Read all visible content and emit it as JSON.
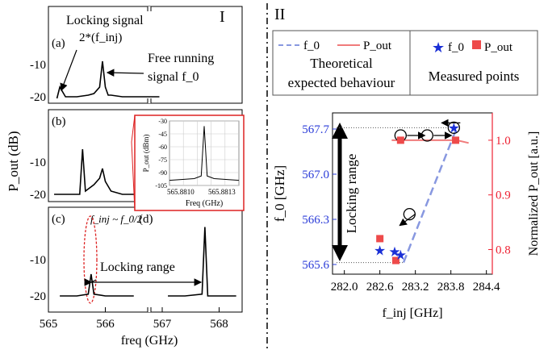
{
  "chart_data": [
    {
      "type": "line",
      "panel": "I",
      "title": "I",
      "xlabel": "freq (GHz)",
      "ylabel": "P_out (dB)",
      "xlim": [
        565,
        568.5
      ],
      "x_ticks": [
        "565",
        "566",
        "567",
        "568"
      ],
      "y_ticks": [
        "-10",
        "-20"
      ],
      "subpanels": [
        {
          "tag": "(a)",
          "annotations": [
            "Locking signal",
            "2*(f_inj)",
            "Free running",
            "signal f_0"
          ],
          "series": [
            {
              "x": [
                565.15,
                565.2,
                565.3,
                565.5,
                565.7,
                565.8,
                565.9,
                565.95,
                566.0,
                566.05,
                566.1,
                566.3,
                566.6,
                566.95
              ],
              "y": [
                -20.5,
                -17,
                -20,
                -20,
                -19.5,
                -19,
                -17,
                -9,
                -17,
                -19.5,
                -19.5,
                -20,
                -20,
                -20
              ]
            }
          ]
        },
        {
          "tag": "(b)",
          "series": [
            {
              "x": [
                565.1,
                565.3,
                565.55,
                565.6,
                565.65,
                565.8,
                565.9,
                565.95,
                566.0,
                566.1,
                566.3,
                566.6,
                566.9
              ],
              "y": [
                -20,
                -20,
                -20,
                -6,
                -19,
                -17,
                -15,
                -12,
                -16,
                -19,
                -20,
                -20,
                -20
              ]
            }
          ]
        },
        {
          "tag": "(c)",
          "annotations": [
            "f_inj ~ f_0/2"
          ],
          "series": [
            {
              "x": [
                565.2,
                565.5,
                565.7,
                565.75,
                565.8,
                566.0,
                566.2,
                566.5
              ],
              "y": [
                -20,
                -20,
                -19.5,
                -14,
                -19.5,
                -20,
                -20,
                -20
              ]
            }
          ]
        },
        {
          "tag": "(d)",
          "annotations": [
            "Locking range"
          ],
          "series": [
            {
              "x": [
                567.1,
                567.4,
                567.7,
                567.75,
                567.8,
                568.0,
                568.3
              ],
              "y": [
                -20,
                -20,
                -19.5,
                -1,
                -20,
                -20,
                -20
              ]
            }
          ]
        }
      ],
      "inset": {
        "xlabel": "Freq (GHz)",
        "ylabel": "P_out (dBm)",
        "x_ticks": [
          "565.8810",
          "565.8813"
        ],
        "y_ticks": [
          "-30",
          "-45",
          "-60",
          "-75",
          "-90",
          "-105"
        ],
        "ylim": [
          -105,
          -30
        ],
        "series": [
          {
            "x": [
              565.8808,
              565.88105,
              565.88112,
              565.88115,
              565.88118,
              565.88125,
              565.8815
            ],
            "y": [
              -99,
              -97,
              -94,
              -36,
              -94,
              -97,
              -99
            ]
          }
        ]
      }
    },
    {
      "type": "scatter",
      "panel": "II",
      "title": "II",
      "legend": {
        "left_items": [
          "f_0",
          "P_out"
        ],
        "left_caption": "Theoretical expected behaviour",
        "right_items": [
          "f_0",
          "P_out"
        ],
        "right_caption": "Measured points"
      },
      "xlabel": "f_inj [GHz]",
      "ylabel_left": "f_0 [GHz]",
      "ylabel_right": "Normalized P_out [a.u.]",
      "x_ticks": [
        "282.0",
        "282.6",
        "283.2",
        "283.8",
        "284.4"
      ],
      "y_left_ticks": [
        "567.7",
        "567.0",
        "566.3",
        "565.6"
      ],
      "y_right_ticks": [
        "1.0",
        "0.9",
        "0.8"
      ],
      "xlim": [
        281.8,
        284.5
      ],
      "ylim_left": [
        565.45,
        567.95
      ],
      "ylim_right": [
        0.755,
        1.05
      ],
      "annotation": "Locking range",
      "theory_f0": {
        "x": [
          283.0,
          283.9
        ],
        "y": [
          565.63,
          567.72
        ]
      },
      "theory_pout": {
        "x": [
          282.8,
          283.9,
          284.1
        ],
        "y": [
          1.0,
          1.0,
          0.995
        ]
      },
      "measured_f0": {
        "x": [
          282.6,
          282.85,
          282.95,
          283.85
        ],
        "y": [
          565.82,
          565.8,
          565.75,
          567.72
        ]
      },
      "measured_pout": {
        "x": [
          282.6,
          282.87,
          282.95,
          283.88
        ],
        "y": [
          0.82,
          0.78,
          1.0,
          1.0
        ]
      },
      "circles": {
        "x": [
          282.95,
          283.4,
          283.1,
          283.85
        ],
        "y_left": [
          567.6,
          567.6,
          566.38,
          567.72
        ]
      }
    }
  ]
}
